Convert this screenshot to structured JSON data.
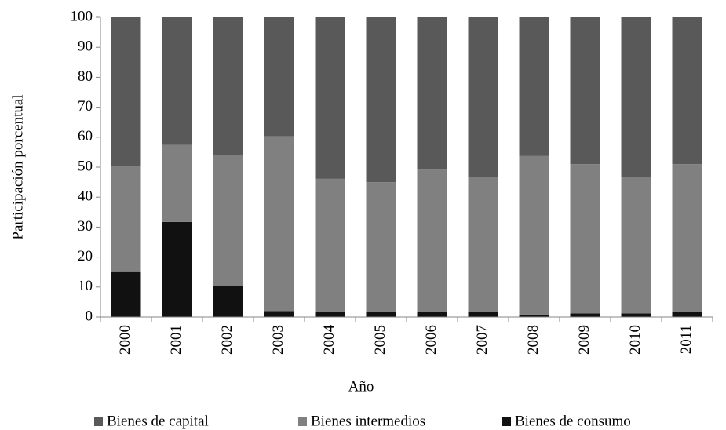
{
  "chart_data": {
    "type": "stacked_bar",
    "x_label": "Año",
    "y_label": "Participación porcentual",
    "categories": [
      "2000",
      "2001",
      "2002",
      "2003",
      "2004",
      "2005",
      "2006",
      "2007",
      "2008",
      "2009",
      "2010",
      "2011"
    ],
    "series": [
      {
        "name": "Bienes de consumo",
        "color": "#111111",
        "values": [
          15,
          31.7,
          10.3,
          2,
          1.7,
          1.7,
          1.7,
          1.7,
          0.8,
          1.2,
          1.2,
          1.7
        ]
      },
      {
        "name": "Bienes intermedios",
        "color": "#808080",
        "values": [
          35.3,
          25.7,
          43.8,
          58.3,
          44.4,
          43.3,
          47.5,
          44.9,
          52.9,
          49.8,
          45.4,
          49.3
        ]
      },
      {
        "name": "Bienes de capital",
        "color": "#595959",
        "values": [
          49.7,
          42.6,
          45.9,
          39.7,
          53.9,
          55,
          50.8,
          53.4,
          46.3,
          49,
          53.4,
          49
        ]
      }
    ],
    "legend_order": [
      "Bienes de capital",
      "Bienes intermedios",
      "Bienes de consumo"
    ],
    "ylim": [
      0,
      100
    ],
    "yticks": [
      0,
      10,
      20,
      30,
      40,
      50,
      60,
      70,
      80,
      90,
      100
    ],
    "legend": "bottom"
  }
}
